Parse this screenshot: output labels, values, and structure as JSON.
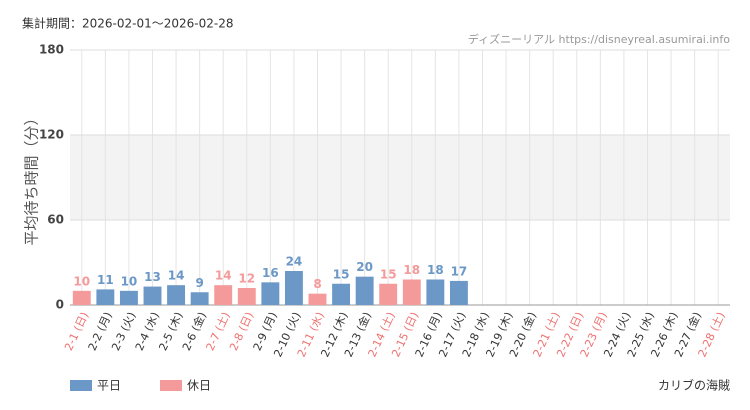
{
  "chart_data": {
    "type": "bar",
    "title": "集計期間：2026-02-01～2026-02-28",
    "source": "ディズニーリアル https://disneyreal.asumirai.info",
    "attraction": "カリブの海賊",
    "y_label": "平均待ち時間（分）",
    "categories": [
      "2-1 (日)",
      "2-2 (月)",
      "2-3 (火)",
      "2-4 (水)",
      "2-5 (木)",
      "2-6 (金)",
      "2-7 (土)",
      "2-8 (日)",
      "2-9 (月)",
      "2-10 (火)",
      "2-11 (水)",
      "2-12 (木)",
      "2-13 (金)",
      "2-14 (土)",
      "2-15 (日)",
      "2-16 (月)",
      "2-17 (火)",
      "2-18 (水)",
      "2-19 (木)",
      "2-20 (金)",
      "2-21 (土)",
      "2-22 (日)",
      "2-23 (月)",
      "2-24 (火)",
      "2-25 (水)",
      "2-26 (木)",
      "2-27 (金)",
      "2-28 (土)"
    ],
    "category_series": [
      1,
      0,
      0,
      0,
      0,
      0,
      1,
      1,
      0,
      0,
      1,
      0,
      0,
      1,
      1,
      0,
      0,
      0,
      0,
      0,
      1,
      1,
      1,
      0,
      0,
      0,
      0,
      1
    ],
    "series": [
      {
        "name": "平日",
        "color": "#6b98c6",
        "values": [
          null,
          11,
          10,
          13,
          14,
          9,
          null,
          null,
          16,
          24,
          null,
          15,
          20,
          null,
          null,
          18,
          17,
          null,
          null,
          null,
          null,
          null,
          null,
          null,
          null,
          null,
          null,
          null
        ]
      },
      {
        "name": "休日",
        "color": "#f59a9a",
        "values": [
          10,
          null,
          null,
          null,
          null,
          null,
          14,
          12,
          null,
          null,
          8,
          null,
          null,
          15,
          18,
          null,
          null,
          null,
          null,
          null,
          null,
          null,
          null,
          null,
          null,
          null,
          null,
          null
        ]
      }
    ],
    "ylim": [
      0,
      180
    ],
    "yticks": [
      0,
      60,
      120,
      180
    ],
    "band": [
      60,
      120
    ],
    "grid": true,
    "legend": "bottom-left"
  }
}
